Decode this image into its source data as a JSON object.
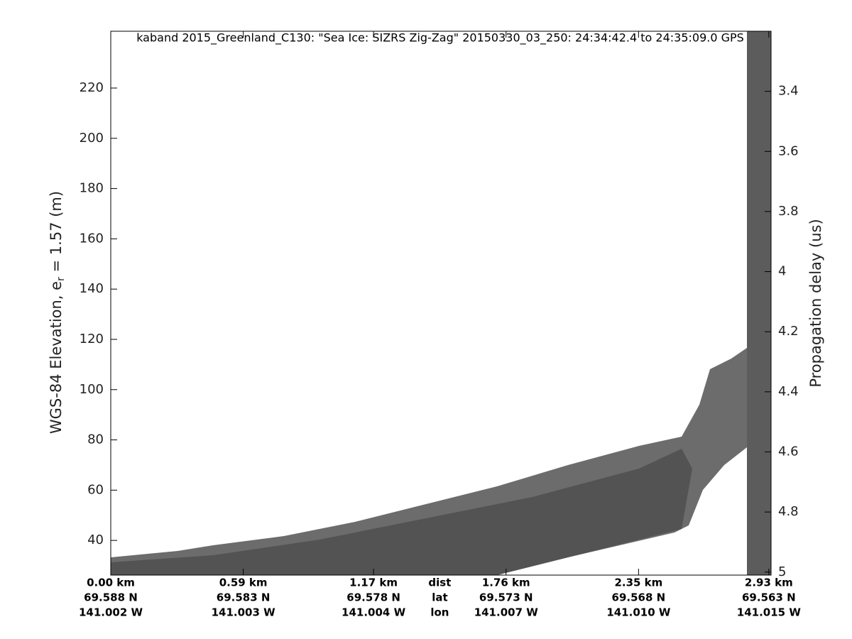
{
  "chart_data": {
    "type": "echogram",
    "title": "kaband 2015_Greenland_C130: \"Sea Ice: SIZRS Zig-Zag\"  20150330_03_250: 24:34:42.4 to 24:35:09.0 GPS",
    "ylabel": {
      "text": "WGS-84 Elevation, e",
      "subscript": "r",
      "after": " = 1.57 (m)"
    },
    "y2label": "Propagation delay (us)",
    "ylim": [
      26.2,
      242.6
    ],
    "yticks": [
      40,
      60,
      80,
      100,
      120,
      140,
      160,
      180,
      200,
      220
    ],
    "y2lim": [
      3.2,
      5.01
    ],
    "y2_reversed": true,
    "y2ticks": [
      3.4,
      3.6,
      3.8,
      4,
      4.2,
      4.4,
      4.6,
      4.8,
      5
    ],
    "xlim": [
      0,
      2.94
    ],
    "xticks": [
      {
        "value": 0,
        "label": "0.00 km"
      },
      {
        "value": 0.59,
        "label": "0.59 km"
      },
      {
        "value": 1.17,
        "label": "1.17 km"
      },
      {
        "value": 1.76,
        "label": "1.76 km"
      },
      {
        "value": 2.35,
        "label": "2.35 km"
      },
      {
        "value": 2.93,
        "label": "2.93 km"
      }
    ],
    "xtick_lat": [
      "69.588 N",
      "69.583 N",
      "69.578 N",
      "69.573 N",
      "69.568 N",
      "69.563 N"
    ],
    "xtick_lon": [
      "141.002 W",
      "141.003 W",
      "141.004 W",
      "141.007 W",
      "141.010 W",
      "141.015 W"
    ],
    "x_row_labels": [
      "dist",
      "lat",
      "lon"
    ]
  }
}
